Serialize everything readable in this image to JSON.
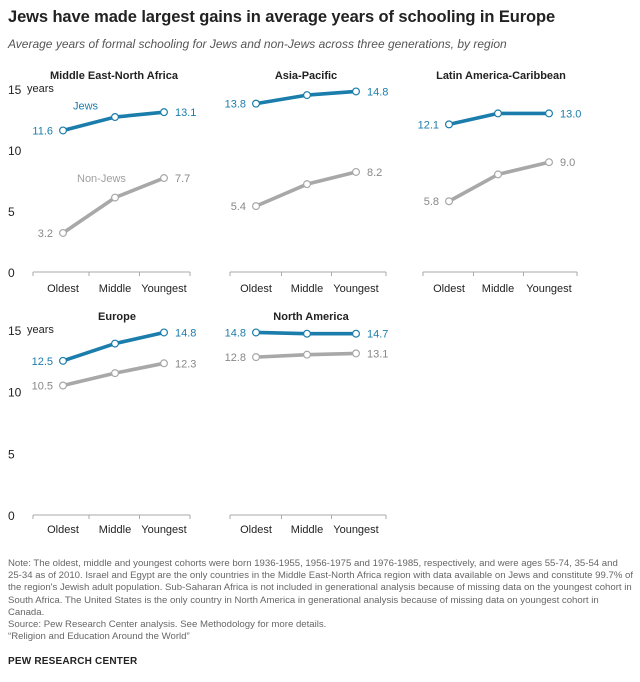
{
  "title": "Jews have made largest gains in average years of schooling in Europe",
  "subtitle": "Average years of formal schooling for Jews and non-Jews across three generations, by region",
  "colors": {
    "jews": "#1b7dab",
    "non_jews": "#a8a8a8",
    "axis": "#aaaaaa",
    "text": "#222222"
  },
  "chart_data": [
    {
      "type": "line",
      "title": "Middle East-North Africa",
      "categories": [
        "Oldest",
        "Middle",
        "Youngest"
      ],
      "ylim": [
        0,
        15
      ],
      "yticks": [
        "0",
        "5",
        "10",
        "15"
      ],
      "yunit": "years",
      "series": [
        {
          "name": "Jews",
          "values": [
            11.6,
            12.7,
            13.1
          ],
          "start_label": "11.6",
          "end_label": "13.1"
        },
        {
          "name": "Non-Jews",
          "values": [
            3.2,
            6.1,
            7.7
          ],
          "start_label": "3.2",
          "end_label": "7.7"
        }
      ]
    },
    {
      "type": "line",
      "title": "Asia-Pacific",
      "categories": [
        "Oldest",
        "Middle",
        "Youngest"
      ],
      "ylim": [
        0,
        15
      ],
      "series": [
        {
          "values": [
            13.8,
            14.5,
            14.8
          ],
          "start_label": "13.8",
          "end_label": "14.8"
        },
        {
          "values": [
            5.4,
            7.2,
            8.2
          ],
          "start_label": "5.4",
          "end_label": "8.2"
        }
      ]
    },
    {
      "type": "line",
      "title": "Latin America-Caribbean",
      "categories": [
        "Oldest",
        "Middle",
        "Youngest"
      ],
      "ylim": [
        0,
        15
      ],
      "series": [
        {
          "values": [
            12.1,
            13.0,
            13.0
          ],
          "start_label": "12.1",
          "end_label": "13.0"
        },
        {
          "values": [
            5.8,
            8.0,
            9.0
          ],
          "start_label": "5.8",
          "end_label": "9.0"
        }
      ]
    },
    {
      "type": "line",
      "title": "Europe",
      "categories": [
        "Oldest",
        "Middle",
        "Youngest"
      ],
      "ylim": [
        0,
        15
      ],
      "yticks": [
        "0",
        "5",
        "10",
        "15"
      ],
      "yunit": "years",
      "series": [
        {
          "values": [
            12.5,
            13.9,
            14.8
          ],
          "start_label": "12.5",
          "end_label": "14.8"
        },
        {
          "values": [
            10.5,
            11.5,
            12.3
          ],
          "start_label": "10.5",
          "end_label": "12.3"
        }
      ]
    },
    {
      "type": "line",
      "title": "North America",
      "categories": [
        "Oldest",
        "Middle",
        "Youngest"
      ],
      "ylim": [
        0,
        15
      ],
      "series": [
        {
          "values": [
            14.8,
            14.7,
            14.7
          ],
          "start_label": "14.8",
          "end_label": "14.7"
        },
        {
          "values": [
            12.8,
            13.0,
            13.1
          ],
          "start_label": "12.8",
          "end_label": "13.1"
        }
      ]
    }
  ],
  "notes": [
    "Note: The oldest, middle and youngest cohorts were born 1936-1955, 1956-1975 and 1976-1985, respectively, and were ages 55-74, 35-54 and 25-34 as of 2010. Israel and Egypt are the only countries in the Middle East-North Africa region with data available on Jews and constitute 99.7% of the region's Jewish adult population. Sub-Saharan Africa is not included in generational analysis because of missing data on the youngest cohort in South Africa. The United States is the only country in North America in generational analysis because of missing data on youngest cohort in Canada.",
    "Source: Pew Research Center analysis. See Methodology for more details.",
    "“Religion and Education Around the World”"
  ],
  "footer": "PEW RESEARCH CENTER"
}
